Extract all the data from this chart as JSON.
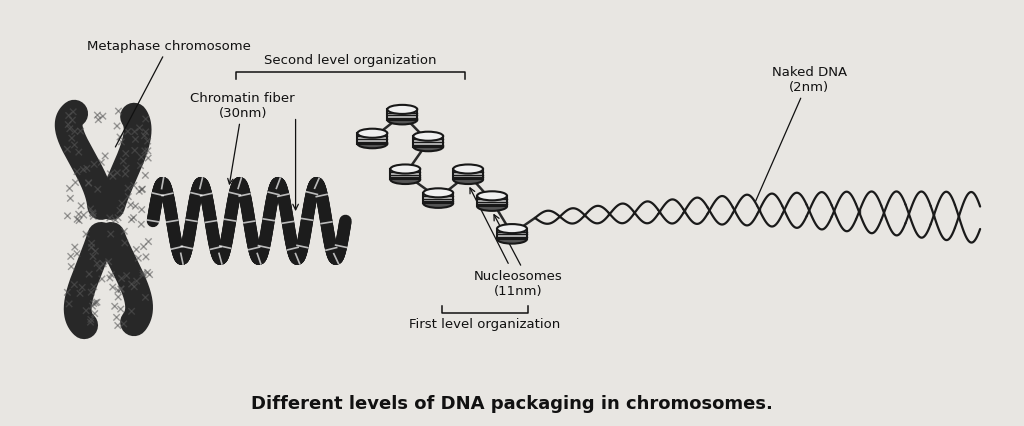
{
  "title": "Different levels of DNA packaging in chromosomes.",
  "background_color": "#e8e6e2",
  "labels": {
    "metaphase": "Metaphase chromosome",
    "second_level": "Second level organization",
    "chromatin_fiber": "Chromatin fiber\n(30nm)",
    "nucleosomes": "Nucleosomes\n(11nm)",
    "first_level": "First level organization",
    "naked_dna": "Naked DNA\n(2nm)"
  },
  "text_color": "#111111",
  "drawing_color": "#1a1a1a",
  "title_fontsize": 13,
  "label_fontsize": 9.5,
  "fig_width": 10.24,
  "fig_height": 4.27,
  "dpi": 100
}
